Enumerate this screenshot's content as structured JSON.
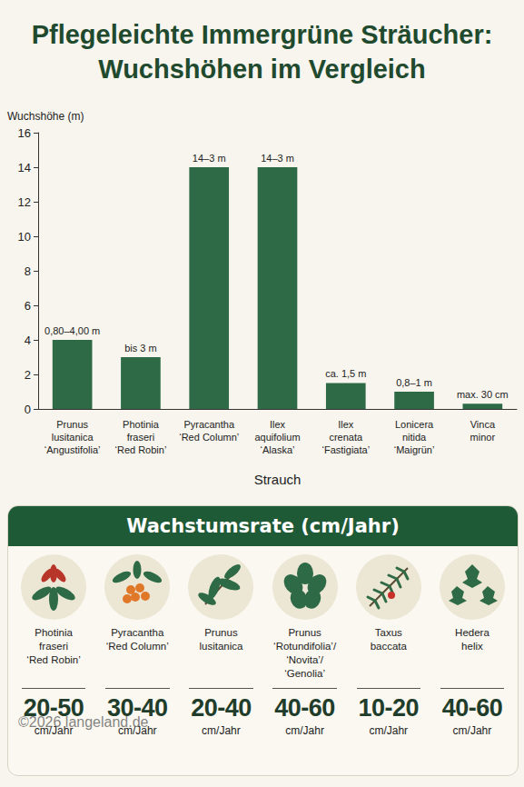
{
  "chart_data": {
    "type": "bar",
    "title": "Pflegeleichte Immergrüne Sträucher:\nWuchshöhen im Vergleich",
    "ylabel": "Wuchshöhe (m)",
    "xlabel": "Strauch",
    "categories": [
      "Prunus\nlusitanica\n‘Angustifolia’",
      "Photinia\nfraseri\n‘Red Robin’",
      "Pyracantha\n‘Red Column’",
      "Ilex\naquifolium\n‘Alaska’",
      "Ilex\ncrenata\n‘Fastigiata’",
      "Lonicera\nnitida\n‘Maigrün’",
      "Vinca\nminor"
    ],
    "values": [
      4,
      3,
      14,
      14,
      1.5,
      1,
      0.3
    ],
    "value_labels": [
      "0,80–4,00 m",
      "bis 3 m",
      "14–3 m",
      "14–3 m",
      "ca. 1,5 m",
      "0,8–1 m",
      "max. 30 cm"
    ],
    "data_labels": true,
    "color": "#2d6a45",
    "ylim": [
      0,
      16
    ],
    "yticks": [
      0,
      2,
      4,
      6,
      8,
      10,
      12,
      14,
      16
    ],
    "grid": false
  },
  "growth_panel": {
    "title": "Wachstumsrate (cm/Jahr)",
    "items": [
      {
        "name": "Photinia\nfraseri\n‘Red Robin’",
        "rate": "20-50",
        "unit": "cm/Jahr"
      },
      {
        "name": "Pyracantha\n‘Red Column’",
        "rate": "30-40",
        "unit": "cm/Jahr"
      },
      {
        "name": "Prunus\nlusitanica",
        "rate": "20-40",
        "unit": "cm/Jahr"
      },
      {
        "name": "Prunus\n‘Rotundifolia’/\n‘Novita’/\n‘Genolia’",
        "rate": "40-60",
        "unit": "cm/Jahr"
      },
      {
        "name": "Taxus\nbaccata",
        "rate": "10-20",
        "unit": "cm/Jahr"
      },
      {
        "name": "Hedera\nhelix",
        "rate": "40-60",
        "unit": "cm/Jahr"
      }
    ]
  },
  "watermark": "©2026 langeland.de"
}
